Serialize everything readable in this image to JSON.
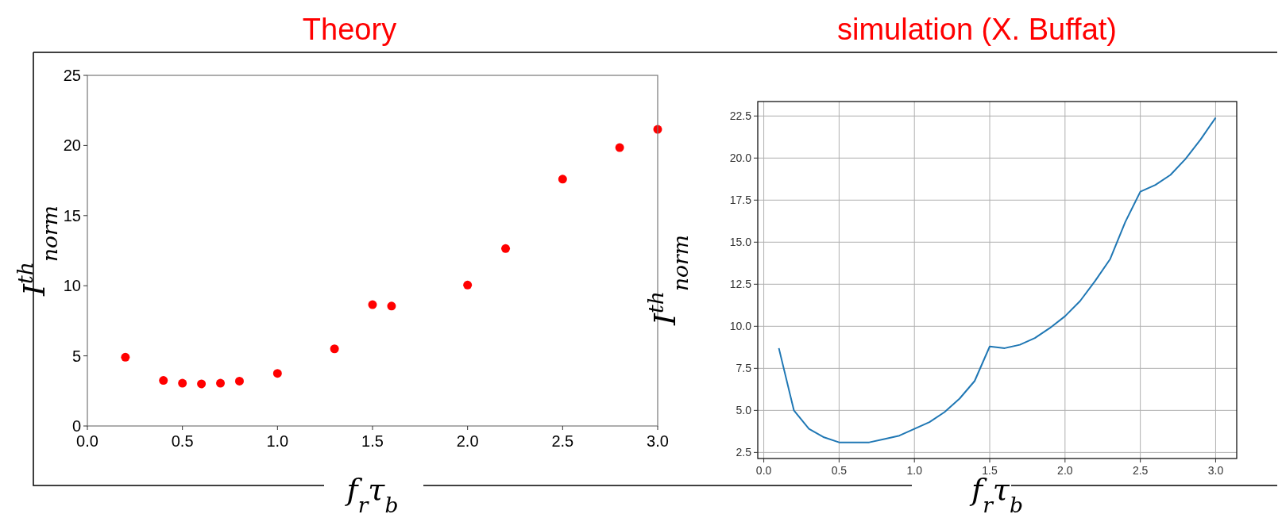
{
  "chart_data": [
    {
      "type": "scatter",
      "title": "Theory",
      "xlabel": "f$_{r}$τ$_{b}$",
      "ylabel": "I$^{th}$$_{norm}$",
      "xlim": [
        0,
        3
      ],
      "ylim": [
        0,
        25
      ],
      "xticks": [
        {
          "value": 0,
          "label": "0.0"
        },
        0.5,
        {
          "value": 1,
          "label": "1.0"
        },
        1.5,
        {
          "value": 2,
          "label": "2.0"
        },
        2.5,
        {
          "value": 3,
          "label": "3.0"
        }
      ],
      "yticks": [
        0,
        5,
        10,
        15,
        20,
        25
      ],
      "grid": false,
      "marker": "circle",
      "series": [
        {
          "color": "#ff0000",
          "x": [
            0.2,
            0.4,
            0.5,
            0.6,
            0.7,
            0.8,
            1.0,
            1.3,
            1.5,
            1.6,
            2.0,
            2.2,
            2.5,
            2.8,
            3.0
          ],
          "values": [
            4.9,
            3.25,
            3.05,
            3.0,
            3.05,
            3.2,
            3.75,
            5.5,
            8.65,
            8.55,
            10.05,
            12.65,
            17.6,
            19.85,
            21.15
          ]
        }
      ]
    },
    {
      "type": "line",
      "title": "simulation (X. Buffat)",
      "xlabel": "f$_{r}$τ$_{b}$",
      "ylabel": "I$^{th}$$_{norm}$",
      "xlim": [
        -0.04,
        3.14
      ],
      "ylim": [
        2.14,
        23.36
      ],
      "xticks": [
        {
          "value": 0,
          "label": "0.0"
        },
        0.5,
        {
          "value": 1,
          "label": "1.0"
        },
        1.5,
        {
          "value": 2,
          "label": "2.0"
        },
        2.5,
        {
          "value": 3,
          "label": "3.0"
        }
      ],
      "yticks": [
        2.5,
        {
          "value": 5,
          "label": "5.0"
        },
        7.5,
        {
          "value": 10,
          "label": "10.0"
        },
        12.5,
        {
          "value": 15,
          "label": "15.0"
        },
        17.5,
        {
          "value": 20,
          "label": "20.0"
        },
        22.5
      ],
      "grid": true,
      "marker": "none",
      "line_style": "solid",
      "series": [
        {
          "color": "#1f77b4",
          "x": [
            0.1,
            0.2,
            0.3,
            0.4,
            0.5,
            0.6,
            0.7,
            0.8,
            0.9,
            1.0,
            1.1,
            1.2,
            1.3,
            1.4,
            1.5,
            1.6,
            1.7,
            1.8,
            1.9,
            2.0,
            2.1,
            2.2,
            2.3,
            2.4,
            2.5,
            2.6,
            2.7,
            2.8,
            2.9,
            3.0
          ],
          "values": [
            8.7,
            5.0,
            3.9,
            3.4,
            3.1,
            3.1,
            3.1,
            3.3,
            3.5,
            3.9,
            4.3,
            4.9,
            5.7,
            6.75,
            8.8,
            8.7,
            8.9,
            9.3,
            9.9,
            10.6,
            11.5,
            12.7,
            14.0,
            16.2,
            18.0,
            18.4,
            19.0,
            19.95,
            21.1,
            22.4
          ]
        }
      ]
    }
  ]
}
